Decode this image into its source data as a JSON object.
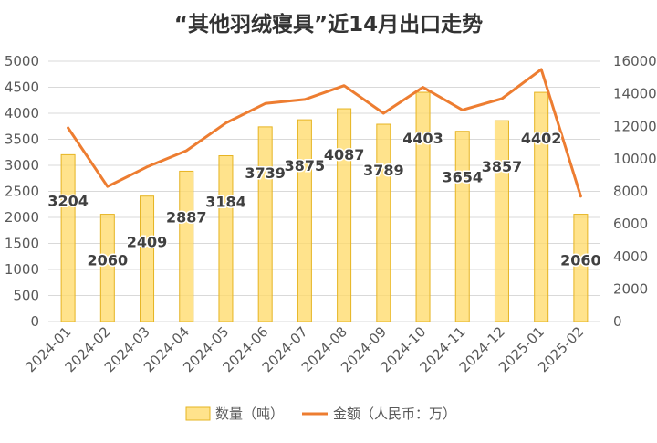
{
  "chart_data": {
    "type": "bar",
    "title": "“其他羽绒寝具”近14月出口走势",
    "categories": [
      "2024-01",
      "2024-02",
      "2024-03",
      "2024-04",
      "2024-05",
      "2024-06",
      "2024-07",
      "2024-08",
      "2024-09",
      "2024-10",
      "2024-11",
      "2024-12",
      "2025-01",
      "2025-02"
    ],
    "series": [
      {
        "name": "数量（吨）",
        "type": "bar",
        "axis": "left",
        "color": "#FFD966",
        "values": [
          3204,
          2060,
          2409,
          2887,
          3184,
          3739,
          3875,
          4087,
          3789,
          4403,
          3654,
          3857,
          4402,
          2060
        ],
        "labels": [
          "3204",
          "2060",
          "2409",
          "2887",
          "3184",
          "3739",
          "3875",
          "4087",
          "3789",
          "4403",
          "3654",
          "3857",
          "4402",
          "2060"
        ]
      },
      {
        "name": "金额（人民币：万）",
        "type": "line",
        "axis": "right",
        "color": "#ED7D31",
        "values": [
          11900,
          8300,
          9500,
          10500,
          12200,
          13400,
          13650,
          14500,
          12800,
          14400,
          13000,
          13700,
          15500,
          7700
        ]
      }
    ],
    "y_left": {
      "range": [
        0,
        5000
      ],
      "ticks": [
        "0",
        "500",
        "1000",
        "1500",
        "2000",
        "2500",
        "3000",
        "3500",
        "4000",
        "4500",
        "5000"
      ]
    },
    "y_right": {
      "range": [
        0,
        16000
      ],
      "ticks": [
        "0",
        "2000",
        "4000",
        "6000",
        "8000",
        "10000",
        "12000",
        "14000",
        "16000"
      ]
    },
    "grid": true,
    "legend_position": "bottom"
  }
}
